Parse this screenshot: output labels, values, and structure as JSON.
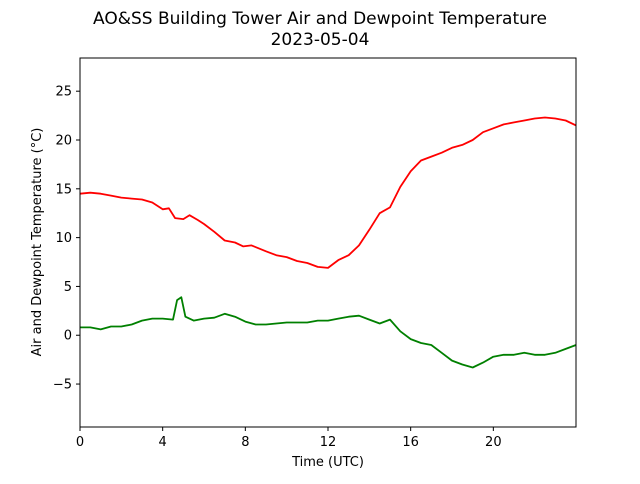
{
  "chart_data": {
    "type": "line",
    "title": "AO&SS Building Tower Air and Dewpoint Temperature",
    "subtitle": "2023-05-04",
    "xlabel": "Time (UTC)",
    "ylabel": "Air and Dewpoint Temperature (°C)",
    "xlim": [
      0,
      24
    ],
    "ylim": [
      -9.4,
      28.4
    ],
    "xticks": [
      0,
      4,
      8,
      12,
      16,
      20
    ],
    "yticks": [
      -5,
      0,
      5,
      10,
      15,
      20,
      25
    ],
    "grid": false,
    "series": [
      {
        "color": "#ff0000",
        "points": [
          [
            0,
            14.5
          ],
          [
            0.5,
            14.6
          ],
          [
            1,
            14.5
          ],
          [
            1.5,
            14.3
          ],
          [
            2,
            14.1
          ],
          [
            2.5,
            14.0
          ],
          [
            3,
            13.9
          ],
          [
            3.5,
            13.6
          ],
          [
            4,
            12.9
          ],
          [
            4.3,
            13.0
          ],
          [
            4.6,
            12.0
          ],
          [
            5,
            11.9
          ],
          [
            5.3,
            12.3
          ],
          [
            5.7,
            11.8
          ],
          [
            6,
            11.4
          ],
          [
            6.5,
            10.6
          ],
          [
            7,
            9.7
          ],
          [
            7.5,
            9.5
          ],
          [
            7.9,
            9.1
          ],
          [
            8.3,
            9.2
          ],
          [
            9,
            8.6
          ],
          [
            9.5,
            8.2
          ],
          [
            10,
            8.0
          ],
          [
            10.5,
            7.6
          ],
          [
            11,
            7.4
          ],
          [
            11.5,
            7.0
          ],
          [
            12,
            6.9
          ],
          [
            12.5,
            7.7
          ],
          [
            13,
            8.2
          ],
          [
            13.5,
            9.2
          ],
          [
            14,
            10.8
          ],
          [
            14.5,
            12.5
          ],
          [
            15,
            13.1
          ],
          [
            15.5,
            15.2
          ],
          [
            16,
            16.8
          ],
          [
            16.5,
            17.9
          ],
          [
            17,
            18.3
          ],
          [
            17.5,
            18.7
          ],
          [
            18,
            19.2
          ],
          [
            18.5,
            19.5
          ],
          [
            19,
            20.0
          ],
          [
            19.5,
            20.8
          ],
          [
            20,
            21.2
          ],
          [
            20.5,
            21.6
          ],
          [
            21,
            21.8
          ],
          [
            21.5,
            22.0
          ],
          [
            22,
            22.2
          ],
          [
            22.5,
            22.3
          ],
          [
            23,
            22.2
          ],
          [
            23.5,
            22.0
          ],
          [
            24,
            21.5
          ]
        ]
      },
      {
        "color": "#008000",
        "points": [
          [
            0,
            0.8
          ],
          [
            0.5,
            0.8
          ],
          [
            1,
            0.6
          ],
          [
            1.5,
            0.9
          ],
          [
            2,
            0.9
          ],
          [
            2.5,
            1.1
          ],
          [
            3,
            1.5
          ],
          [
            3.5,
            1.7
          ],
          [
            4,
            1.7
          ],
          [
            4.5,
            1.6
          ],
          [
            4.7,
            3.6
          ],
          [
            4.9,
            3.9
          ],
          [
            5.1,
            1.9
          ],
          [
            5.5,
            1.5
          ],
          [
            6,
            1.7
          ],
          [
            6.5,
            1.8
          ],
          [
            7,
            2.2
          ],
          [
            7.5,
            1.9
          ],
          [
            8,
            1.4
          ],
          [
            8.5,
            1.1
          ],
          [
            9,
            1.1
          ],
          [
            9.5,
            1.2
          ],
          [
            10,
            1.3
          ],
          [
            10.5,
            1.3
          ],
          [
            11,
            1.3
          ],
          [
            11.5,
            1.5
          ],
          [
            12,
            1.5
          ],
          [
            12.5,
            1.7
          ],
          [
            13,
            1.9
          ],
          [
            13.5,
            2.0
          ],
          [
            14,
            1.6
          ],
          [
            14.5,
            1.2
          ],
          [
            15,
            1.6
          ],
          [
            15.5,
            0.4
          ],
          [
            16,
            -0.4
          ],
          [
            16.5,
            -0.8
          ],
          [
            17,
            -1.0
          ],
          [
            17.5,
            -1.8
          ],
          [
            18,
            -2.6
          ],
          [
            18.5,
            -3.0
          ],
          [
            19,
            -3.3
          ],
          [
            19.5,
            -2.8
          ],
          [
            20,
            -2.2
          ],
          [
            20.5,
            -2.0
          ],
          [
            21,
            -2.0
          ],
          [
            21.5,
            -1.8
          ],
          [
            22,
            -2.0
          ],
          [
            22.5,
            -2.0
          ],
          [
            23,
            -1.8
          ],
          [
            23.5,
            -1.4
          ],
          [
            24,
            -1.0
          ]
        ]
      }
    ]
  }
}
